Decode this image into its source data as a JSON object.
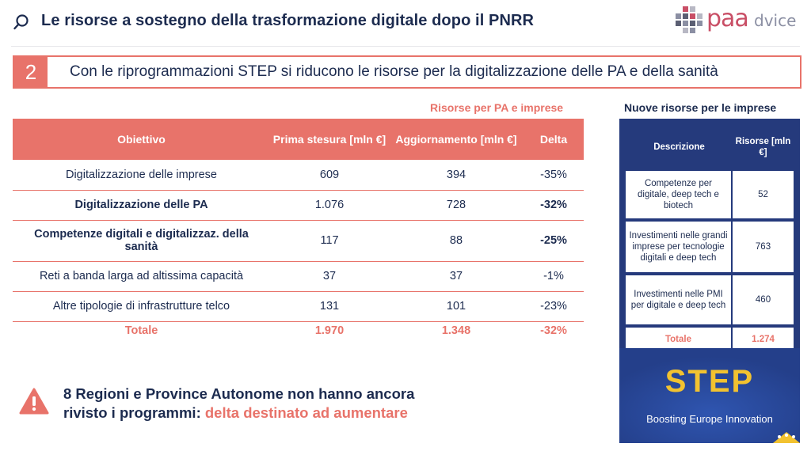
{
  "header": {
    "title": "Le risorse a sostegno della trasformazione digitale dopo il PNRR",
    "logo_main": "paa",
    "logo_sub": "dvice"
  },
  "banner": {
    "number": "2",
    "text": "Con le riprogrammazioni STEP si riducono le risorse per la digitalizzazione delle PA e della sanità"
  },
  "left_table": {
    "caption": "Risorse per PA e imprese",
    "headers": [
      "Obiettivo",
      "Prima stesura [mln €]",
      "Aggiornamento [mln €]",
      "Delta"
    ],
    "rows": [
      {
        "obiettivo": "Digitalizzazione delle imprese",
        "prima": "609",
        "aggiornamento": "394",
        "delta": "-35%"
      },
      {
        "obiettivo": "Digitalizzazione delle PA",
        "prima": "1.076",
        "aggiornamento": "728",
        "delta": "-32%"
      },
      {
        "obiettivo": "Competenze digitali e digitalizzaz. della sanità",
        "prima": "117",
        "aggiornamento": "88",
        "delta": "-25%"
      },
      {
        "obiettivo": "Reti a banda larga ad altissima capacità",
        "prima": "37",
        "aggiornamento": "37",
        "delta": "-1%"
      },
      {
        "obiettivo": "Altre tipologie di infrastrutture telco",
        "prima": "131",
        "aggiornamento": "101",
        "delta": "-23%"
      }
    ],
    "total": {
      "label": "Totale",
      "prima": "1.970",
      "aggiornamento": "1.348",
      "delta": "-32%"
    }
  },
  "right_table": {
    "caption": "Nuove risorse per le imprese",
    "headers": [
      "Descrizione",
      "Risorse [mln €]"
    ],
    "rows": [
      {
        "descrizione": "Competenze per digitale, deep tech e biotech",
        "risorse": "52"
      },
      {
        "descrizione": "Investimenti nelle grandi imprese per tecnologie digitali e deep tech",
        "risorse": "763"
      },
      {
        "descrizione": "Investimenti nelle PMI per digitale e deep tech",
        "risorse": "460"
      }
    ],
    "total": {
      "label": "Totale",
      "risorse": "1.274"
    }
  },
  "step": {
    "word": "STEP",
    "tagline": "Boosting Europe Innovation"
  },
  "warning": {
    "line1": "8 Regioni e Province Autonome non hanno ancora",
    "line2_plain": "rivisto i programmi: ",
    "line2_accent": "delta destinato ad aumentare"
  },
  "colors": {
    "accent": "#e8736a",
    "navy": "#1c2b4f",
    "panel_blue": "#253a7c",
    "step_yellow": "#f2c230"
  }
}
